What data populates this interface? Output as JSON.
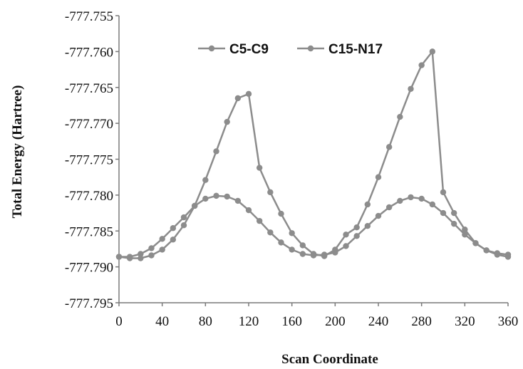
{
  "chart_data": {
    "type": "line",
    "title": "",
    "xlabel": "Scan Coordinate",
    "ylabel": "Total Energy (Hartree)",
    "xlim": [
      0,
      360
    ],
    "ylim": [
      -777.795,
      -777.755
    ],
    "x_ticks": [
      "0",
      "40",
      "80",
      "120",
      "160",
      "200",
      "240",
      "280",
      "320",
      "360"
    ],
    "y_ticks": [
      "-777.755",
      "-777.760",
      "-777.765",
      "-777.770",
      "-777.775",
      "-777.780",
      "-777.785",
      "-777.790",
      "-777.795"
    ],
    "grid": false,
    "legend_position": "top-center",
    "series_color": "#8c8c8c",
    "series": [
      {
        "name": "C5-C9",
        "x": [
          0,
          10,
          20,
          30,
          40,
          50,
          60,
          70,
          80,
          90,
          100,
          110,
          120,
          130,
          140,
          150,
          160,
          170,
          180,
          190,
          200,
          210,
          220,
          230,
          240,
          250,
          260,
          270,
          280,
          290,
          300,
          310,
          320,
          330,
          340,
          350,
          360
        ],
        "values": [
          -777.7886,
          -777.7888,
          -777.7888,
          -777.7884,
          -777.7876,
          -777.7862,
          -777.7842,
          -777.7815,
          -777.7779,
          -777.7739,
          -777.7698,
          -777.7665,
          -777.7659,
          -777.7762,
          -777.7796,
          -777.7826,
          -777.7853,
          -777.787,
          -777.7882,
          -777.7885,
          -777.7876,
          -777.7855,
          -777.7845,
          -777.7813,
          -777.7775,
          -777.7733,
          -777.7691,
          -777.7652,
          -777.7619,
          -777.76,
          -777.7796,
          -777.7825,
          -777.7848,
          -777.7867,
          -777.7877,
          -777.7881,
          -777.7883
        ]
      },
      {
        "name": "C15-N17",
        "x": [
          0,
          10,
          20,
          30,
          40,
          50,
          60,
          70,
          80,
          90,
          100,
          110,
          120,
          130,
          140,
          150,
          160,
          170,
          180,
          190,
          200,
          210,
          220,
          230,
          240,
          250,
          260,
          270,
          280,
          290,
          300,
          310,
          320,
          330,
          340,
          350,
          360
        ],
        "values": [
          -777.7886,
          -777.7886,
          -777.7882,
          -777.7874,
          -777.7861,
          -777.7846,
          -777.7831,
          -777.7815,
          -777.7805,
          -777.7801,
          -777.7802,
          -777.7808,
          -777.7821,
          -777.7836,
          -777.7852,
          -777.7866,
          -777.7876,
          -777.7882,
          -777.7884,
          -777.7883,
          -777.788,
          -777.7871,
          -777.7857,
          -777.7843,
          -777.7829,
          -777.7817,
          -777.7808,
          -777.7803,
          -777.7805,
          -777.7813,
          -777.7825,
          -777.784,
          -777.7855,
          -777.7867,
          -777.7877,
          -777.7883,
          -777.7886
        ]
      }
    ]
  }
}
